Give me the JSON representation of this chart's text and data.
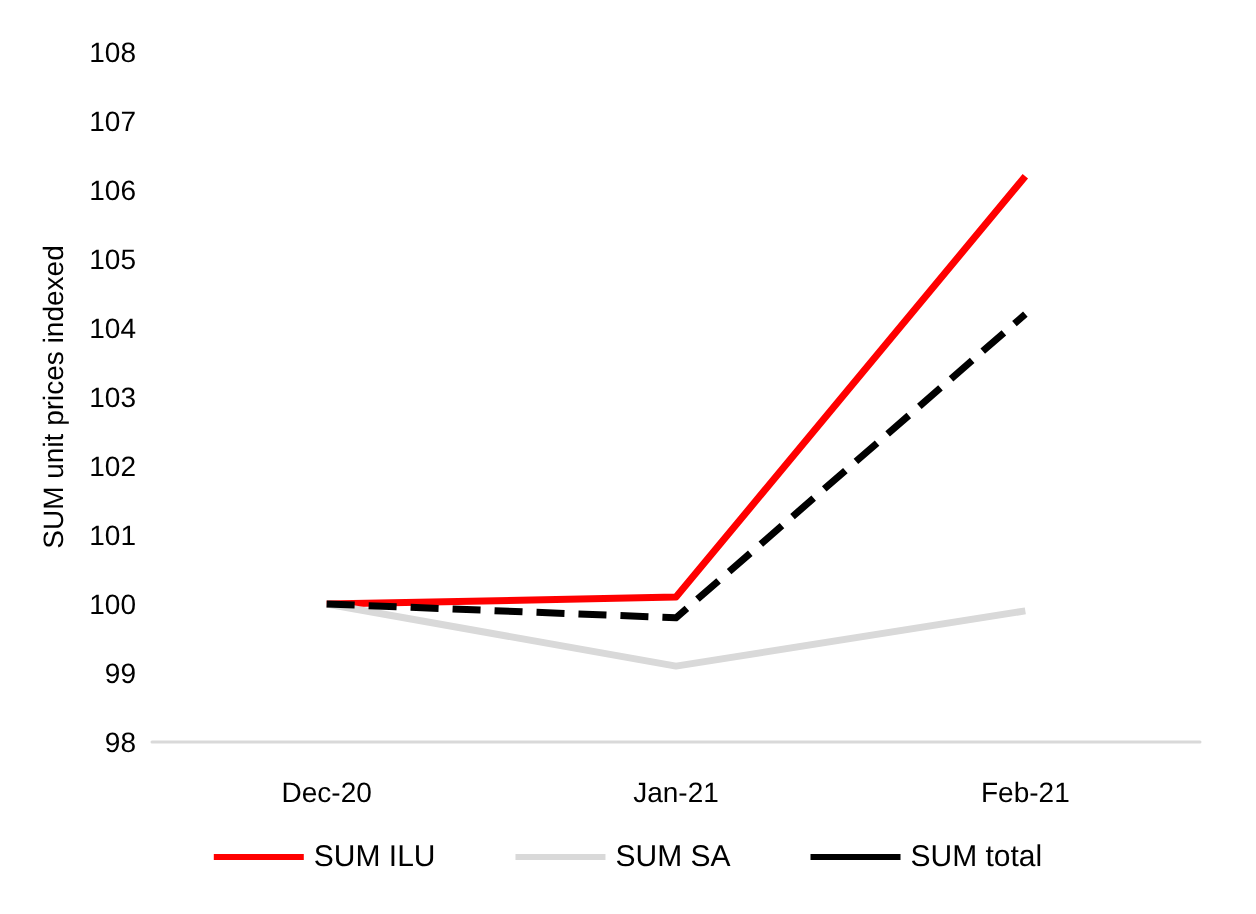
{
  "chart_data": {
    "type": "line",
    "ylabel": "SUM unit prices indexed",
    "categories": [
      "Dec-20",
      "Jan-21",
      "Feb-21"
    ],
    "series": [
      {
        "name": "SUM ILU",
        "color": "#ff0000",
        "values": [
          100,
          100.1,
          106.2
        ]
      },
      {
        "name": "SUM SA",
        "color": "#d9d9d9",
        "values": [
          100,
          99.1,
          99.9
        ]
      },
      {
        "name": "SUM total",
        "color": "#000000",
        "values": [
          100,
          99.8,
          104.2
        ],
        "line_style": "dashed"
      }
    ],
    "ylim": [
      98,
      108
    ],
    "yticks": [
      98,
      99,
      100,
      101,
      102,
      103,
      104,
      105,
      106,
      107,
      108
    ],
    "grid": false,
    "legend": "bottom",
    "marker": "none"
  }
}
